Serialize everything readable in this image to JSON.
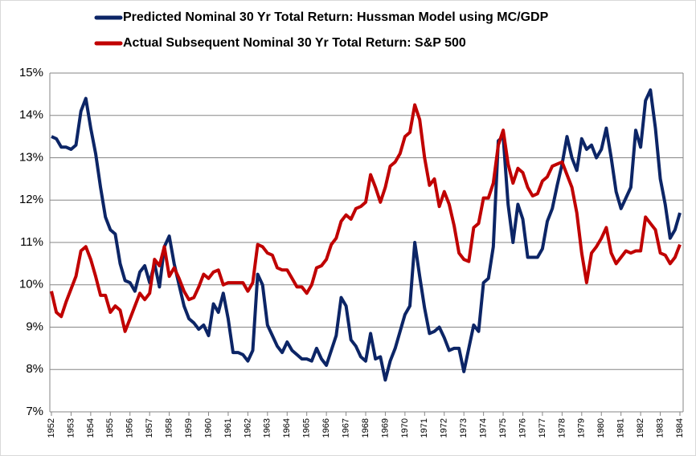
{
  "chart_data": {
    "type": "line",
    "series": [
      {
        "name": "Predicted Nominal 30 Yr Total Return: Hussman Model using MC/GDP",
        "color": "#0c2566",
        "values": [
          13.5,
          13.45,
          13.25,
          13.25,
          13.2,
          13.3,
          14.1,
          14.4,
          13.7,
          13.1,
          12.3,
          11.6,
          11.3,
          11.2,
          10.5,
          10.1,
          10.05,
          9.85,
          10.3,
          10.45,
          10.05,
          10.5,
          9.95,
          10.9,
          11.15,
          10.5,
          10.0,
          9.5,
          9.2,
          9.1,
          8.95,
          9.05,
          8.8,
          9.55,
          9.35,
          9.8,
          9.2,
          8.4,
          8.4,
          8.35,
          8.2,
          8.45,
          10.25,
          10.0,
          9.05,
          8.8,
          8.55,
          8.4,
          8.65,
          8.45,
          8.35,
          8.25,
          8.25,
          8.2,
          8.5,
          8.25,
          8.1,
          8.45,
          8.8,
          9.7,
          9.5,
          8.7,
          8.55,
          8.3,
          8.2,
          8.85,
          8.25,
          8.3,
          7.75,
          8.2,
          8.5,
          8.9,
          9.3,
          9.5,
          11.0,
          10.2,
          9.45,
          8.85,
          8.9,
          9.0,
          8.75,
          8.45,
          8.5,
          8.5,
          7.95,
          8.5,
          9.05,
          8.9,
          10.05,
          10.15,
          10.9,
          13.4,
          13.5,
          11.9,
          11.0,
          11.9,
          11.55,
          10.65,
          10.65,
          10.65,
          10.85,
          11.5,
          11.8,
          12.35,
          12.85,
          13.5,
          13.0,
          12.7,
          13.45,
          13.2,
          13.3,
          13.0,
          13.2,
          13.7,
          13.0,
          12.2,
          11.8,
          12.05,
          12.3,
          13.65,
          13.25,
          14.35,
          14.6,
          13.7,
          12.5,
          11.9,
          11.1,
          11.3,
          11.7
        ]
      },
      {
        "name": "Actual Subsequent Nominal 30 Yr Total Return: S&P 500",
        "color": "#c00000",
        "values": [
          9.85,
          9.35,
          9.25,
          9.6,
          9.9,
          10.2,
          10.8,
          10.9,
          10.6,
          10.2,
          9.75,
          9.75,
          9.35,
          9.5,
          9.4,
          8.9,
          9.2,
          9.5,
          9.8,
          9.65,
          9.8,
          10.6,
          10.45,
          10.9,
          10.2,
          10.4,
          10.15,
          9.85,
          9.65,
          9.7,
          9.95,
          10.25,
          10.15,
          10.3,
          10.35,
          10.0,
          10.05,
          10.05,
          10.05,
          10.05,
          9.85,
          10.05,
          10.95,
          10.9,
          10.75,
          10.7,
          10.4,
          10.35,
          10.35,
          10.15,
          9.95,
          9.95,
          9.8,
          10.0,
          10.4,
          10.45,
          10.6,
          10.95,
          11.1,
          11.5,
          11.65,
          11.55,
          11.8,
          11.85,
          11.95,
          12.6,
          12.3,
          11.95,
          12.3,
          12.8,
          12.9,
          13.1,
          13.5,
          13.6,
          14.25,
          13.9,
          13.0,
          12.35,
          12.5,
          11.85,
          12.2,
          11.9,
          11.4,
          10.75,
          10.6,
          10.55,
          11.35,
          11.45,
          12.05,
          12.05,
          12.4,
          13.3,
          13.65,
          12.85,
          12.4,
          12.75,
          12.65,
          12.3,
          12.1,
          12.15,
          12.45,
          12.55,
          12.8,
          12.85,
          12.9,
          12.6,
          12.3,
          11.7,
          10.75,
          10.05,
          10.75,
          10.9,
          11.1,
          11.35,
          10.75,
          10.5,
          10.65,
          10.8,
          10.75,
          10.8,
          10.8,
          11.6,
          11.45,
          11.3,
          10.75,
          10.7,
          10.5,
          10.65,
          10.95
        ]
      }
    ],
    "x": [
      1952,
      1952.25,
      1952.5,
      1952.75,
      1953,
      1953.25,
      1953.5,
      1953.75,
      1954,
      1954.25,
      1954.5,
      1954.75,
      1955,
      1955.25,
      1955.5,
      1955.75,
      1956,
      1956.25,
      1956.5,
      1956.75,
      1957,
      1957.25,
      1957.5,
      1957.75,
      1958,
      1958.25,
      1958.5,
      1958.75,
      1959,
      1959.25,
      1959.5,
      1959.75,
      1960,
      1960.25,
      1960.5,
      1960.75,
      1961,
      1961.25,
      1961.5,
      1961.75,
      1962,
      1962.25,
      1962.5,
      1962.75,
      1963,
      1963.25,
      1963.5,
      1963.75,
      1964,
      1964.25,
      1964.5,
      1964.75,
      1965,
      1965.25,
      1965.5,
      1965.75,
      1966,
      1966.25,
      1966.5,
      1966.75,
      1967,
      1967.25,
      1967.5,
      1967.75,
      1968,
      1968.25,
      1968.5,
      1968.75,
      1969,
      1969.25,
      1969.5,
      1969.75,
      1970,
      1970.25,
      1970.5,
      1970.75,
      1971,
      1971.25,
      1971.5,
      1971.75,
      1972,
      1972.25,
      1972.5,
      1972.75,
      1973,
      1973.25,
      1973.5,
      1973.75,
      1974,
      1974.25,
      1974.5,
      1974.75,
      1975,
      1975.25,
      1975.5,
      1975.75,
      1976,
      1976.25,
      1976.5,
      1976.75,
      1977,
      1977.25,
      1977.5,
      1977.75,
      1978,
      1978.25,
      1978.5,
      1978.75,
      1979,
      1979.25,
      1979.5,
      1979.75,
      1980,
      1980.25,
      1980.5,
      1980.75,
      1981,
      1981.25,
      1981.5,
      1981.75,
      1982,
      1982.25,
      1982.5,
      1982.75,
      1983,
      1983.25,
      1983.5,
      1983.75,
      1984
    ],
    "xlim": [
      1952,
      1984
    ],
    "xticks": [
      1952,
      1953,
      1954,
      1955,
      1956,
      1957,
      1958,
      1959,
      1960,
      1961,
      1962,
      1963,
      1964,
      1965,
      1966,
      1967,
      1968,
      1969,
      1970,
      1971,
      1972,
      1973,
      1974,
      1975,
      1976,
      1977,
      1978,
      1979,
      1980,
      1981,
      1982,
      1983,
      1984
    ],
    "ylim": [
      7,
      15
    ],
    "yticks": [
      {
        "value": 7,
        "label": "7%"
      },
      {
        "value": 8,
        "label": "8%"
      },
      {
        "value": 9,
        "label": "9%"
      },
      {
        "value": 10,
        "label": "10%"
      },
      {
        "value": 11,
        "label": "11%"
      },
      {
        "value": 12,
        "label": "12%"
      },
      {
        "value": 13,
        "label": "13%"
      },
      {
        "value": 14,
        "label": "14%"
      },
      {
        "value": 15,
        "label": "15%"
      }
    ],
    "grid": true,
    "legend": "top"
  }
}
